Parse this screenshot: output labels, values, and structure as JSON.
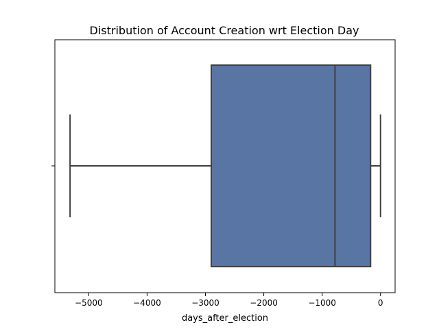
{
  "chart_data": {
    "type": "box",
    "title": "Distribution of Account Creation wrt Election Day",
    "xlabel": "days_after_election",
    "ylabel": "",
    "xlim": [
      -5580,
      250
    ],
    "x_ticks": [
      -5000,
      -4000,
      -3000,
      -2000,
      -1000,
      0
    ],
    "x_tick_labels": [
      "−5000",
      "−4000",
      "−3000",
      "−2000",
      "−1000",
      "0"
    ],
    "orientation": "horizontal",
    "grid": false,
    "legend": "none",
    "box": {
      "whisker_low": -5320,
      "q1": -2900,
      "median": -780,
      "q3": -170,
      "whisker_high": 0
    },
    "colors": {
      "box_fill": "#5875a4",
      "box_edge": "#3f3f3f",
      "axis": "#000000"
    }
  }
}
